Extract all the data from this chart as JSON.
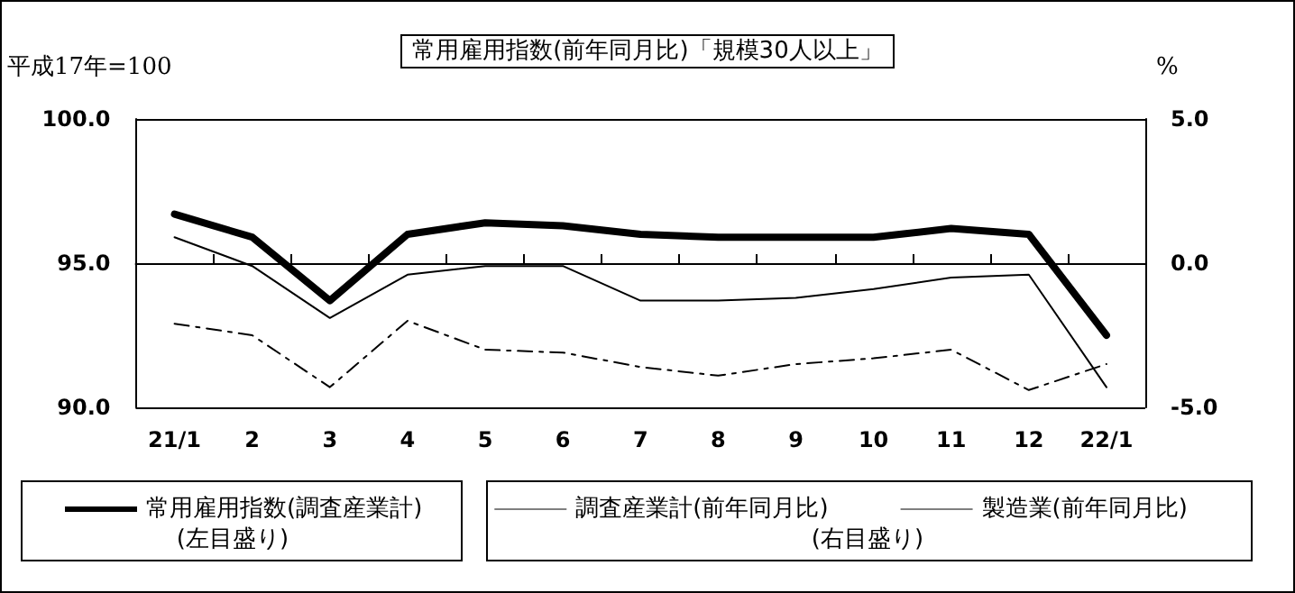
{
  "chart_data": {
    "type": "line",
    "title": "常用雇用指数(前年同月比)「規模30人以上」",
    "ylabel": "平成17年=100",
    "y2label": "%",
    "categories": [
      "21/1",
      "2",
      "3",
      "4",
      "5",
      "6",
      "7",
      "8",
      "9",
      "10",
      "11",
      "12",
      "22/1"
    ],
    "series": [
      {
        "name": "常用雇用指数(調査産業計)",
        "color": "#000000",
        "line_style": "solid",
        "values": [
          96.7,
          95.9,
          93.7,
          96.0,
          96.4,
          96.3,
          96.0,
          95.9,
          95.9,
          95.9,
          96.2,
          96.0,
          92.5
        ]
      },
      {
        "name": "調査産業計(前年同月比)",
        "color": "#000000",
        "line_style": "solid",
        "axis": "y2",
        "values": [
          0.9,
          -0.1,
          -1.9,
          -0.4,
          -0.1,
          -0.1,
          -1.3,
          -1.3,
          -1.2,
          -0.9,
          -0.5,
          -0.4,
          -4.3
        ]
      },
      {
        "name": "製造業(前年同月比)",
        "color": "#000000",
        "line_style": "dashed",
        "axis": "y2",
        "values": [
          -2.1,
          -2.5,
          -4.3,
          -2.0,
          -3.0,
          -3.1,
          -3.6,
          -3.9,
          -3.5,
          -3.3,
          -3.0,
          -4.4,
          -3.5
        ]
      }
    ],
    "ylim": [
      90,
      100
    ],
    "yticks": [
      {
        "value": 90,
        "label": "90.0"
      },
      {
        "value": 95,
        "label": "95.0"
      },
      {
        "value": 100,
        "label": "100.0"
      }
    ],
    "y2lim": [
      -5,
      5
    ],
    "y2ticks": [
      {
        "value": -5,
        "label": "-5.0"
      },
      {
        "value": 0,
        "label": "0.0"
      },
      {
        "value": 5,
        "label": "5.0"
      }
    ],
    "annotations": [
      "(左目盛り)",
      "(右目盛り)"
    ],
    "grid": "y",
    "legend": "bottom",
    "marker": "none"
  }
}
